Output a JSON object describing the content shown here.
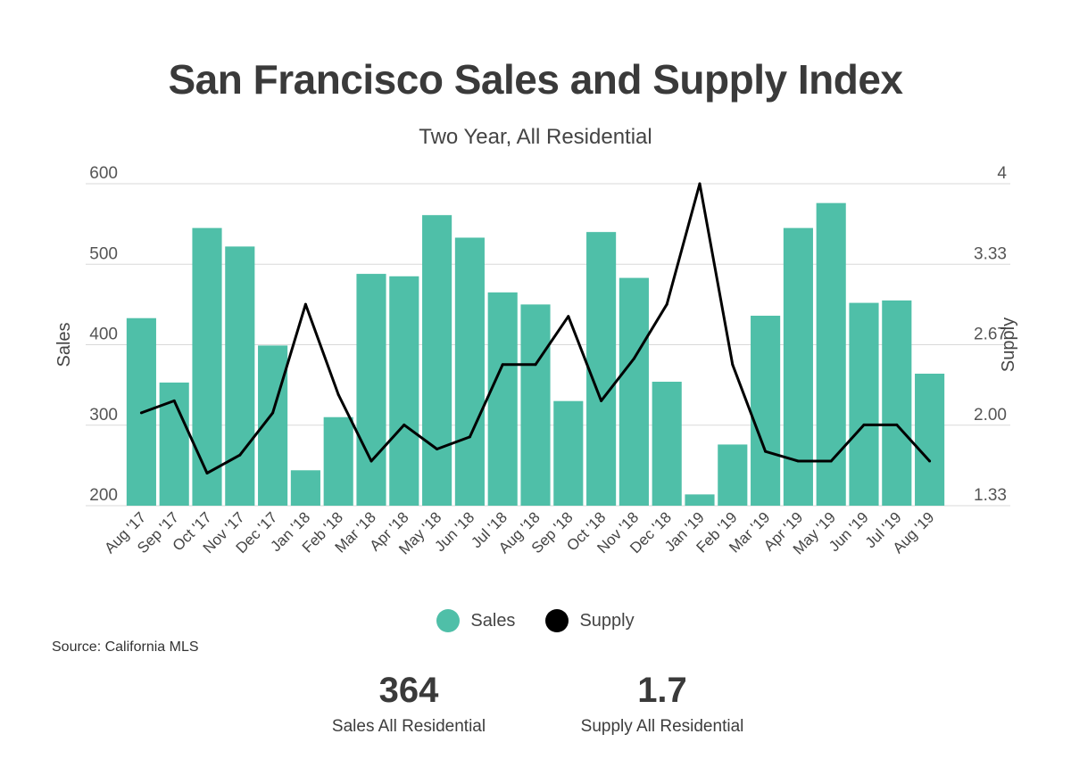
{
  "title": "San Francisco Sales and Supply Index",
  "subtitle": "Two Year, All Residential",
  "source": "Source:  California MLS",
  "colors": {
    "sales": "#4fbfa8",
    "supply": "#000000",
    "grid": "#d9d9d9",
    "text": "#3d3d3d"
  },
  "legend": {
    "sales": "Sales",
    "supply": "Supply"
  },
  "stats": {
    "sales_value": "364",
    "sales_label": "Sales All Residential",
    "supply_value": "1.7",
    "supply_label": "Supply All Residential"
  },
  "chart_data": {
    "type": "bar",
    "title": "San Francisco Sales and Supply Index",
    "subtitle": "Two Year, All Residential",
    "categories": [
      "Aug '17",
      "Sep '17",
      "Oct '17",
      "Nov '17",
      "Dec '17",
      "Jan '18",
      "Feb '18",
      "Mar '18",
      "Apr '18",
      "May '18",
      "Jun '18",
      "Jul '18",
      "Aug '18",
      "Sep '18",
      "Oct '18",
      "Nov '18",
      "Dec '18",
      "Jan '19",
      "Feb '19",
      "Mar '19",
      "Apr '19",
      "May '19",
      "Jun '19",
      "Jul '19",
      "Aug '19"
    ],
    "series": [
      {
        "name": "Sales",
        "type": "bar",
        "axis": "left",
        "values": [
          433,
          353,
          545,
          522,
          399,
          244,
          310,
          488,
          485,
          561,
          533,
          465,
          450,
          330,
          540,
          483,
          354,
          214,
          276,
          436,
          545,
          576,
          452,
          455,
          364
        ]
      },
      {
        "name": "Supply",
        "type": "line",
        "axis": "right",
        "values": [
          2.1,
          2.2,
          1.6,
          1.75,
          2.1,
          3.0,
          2.25,
          1.7,
          2.0,
          1.8,
          1.9,
          2.5,
          2.5,
          2.9,
          2.2,
          2.55,
          3.0,
          4.0,
          2.5,
          1.78,
          1.7,
          1.7,
          2.0,
          2.0,
          1.7
        ]
      }
    ],
    "ylabel": "Sales",
    "ylim": [
      200,
      600
    ],
    "yticks": [
      "200",
      "300",
      "400",
      "500",
      "600"
    ],
    "y2label": "Supply",
    "y2lim": [
      1.33,
      4
    ],
    "y2ticks": [
      "1.33",
      "2.00",
      "2.67",
      "3.33",
      "4"
    ],
    "grid": true,
    "legend_position": "bottom-center"
  }
}
